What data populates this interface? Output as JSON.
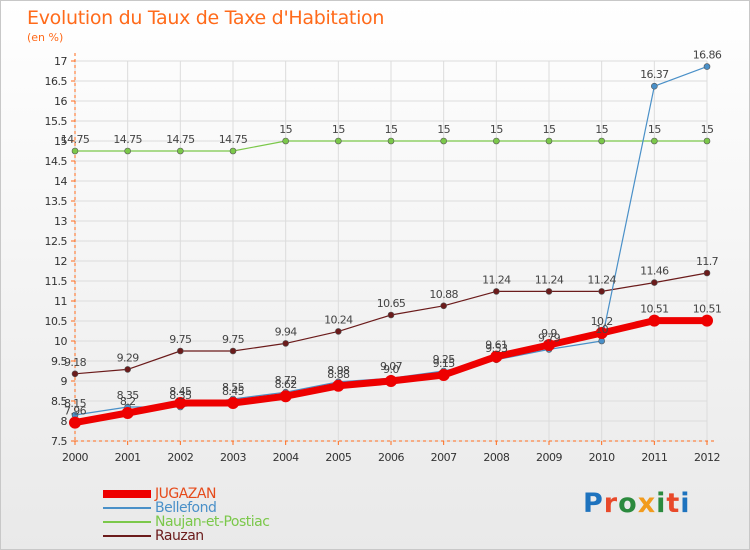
{
  "page": {
    "title": "Evolution du Taux de Taxe d'Habitation",
    "unit_label": "(en %)",
    "brand": "Proxiti",
    "brand_colors": [
      "#1e73be",
      "#e8492a",
      "#2b8a3e",
      "#f29b1d",
      "#2b8a3e",
      "#e8492a",
      "#1e73be"
    ]
  },
  "chart_data": {
    "type": "line",
    "title": "Evolution du Taux de Taxe d'Habitation",
    "ylabel": "(en %)",
    "xlabel": "",
    "categories": [
      "2000",
      "2001",
      "2002",
      "2003",
      "2004",
      "2005",
      "2006",
      "2007",
      "2008",
      "2009",
      "2010",
      "2011",
      "2012"
    ],
    "ylim": [
      7.5,
      17
    ],
    "yticks": [
      "7.5",
      "8",
      "8.5",
      "9",
      "9.5",
      "10",
      "10.5",
      "11",
      "11.5",
      "12",
      "12.5",
      "13",
      "13.5",
      "14",
      "14.5",
      "15",
      "15.5",
      "16",
      "16.5",
      "17"
    ],
    "grid": true,
    "legend_position": "bottom-left",
    "series": [
      {
        "name": "JUGAZAN",
        "color": "#ee0000",
        "values": [
          7.96,
          8.2,
          8.45,
          8.45,
          8.62,
          8.88,
          9.0,
          9.15,
          9.61,
          9.9,
          10.2,
          10.51,
          10.51
        ],
        "labels": [
          "7.96",
          "8.2",
          "8.45",
          "8.45",
          "8.62",
          "8.88",
          "9.0",
          "9.15",
          "9.61",
          "9.9",
          "10.2",
          "10.51",
          "10.51"
        ]
      },
      {
        "name": "Bellefond",
        "color": "#4a90c8",
        "values": [
          8.15,
          8.35,
          8.35,
          8.55,
          8.72,
          8.98,
          9.07,
          9.25,
          9.53,
          9.79,
          10.0,
          16.37,
          16.86
        ],
        "labels": [
          "8.15",
          "8.35",
          "8.35",
          "8.55",
          "8.72",
          "8.98",
          "9.07",
          "9.25",
          "9.53",
          "9.79",
          "10",
          "16.37",
          "16.86"
        ]
      },
      {
        "name": "Naujan-et-Postiac",
        "color": "#7bc84a",
        "values": [
          14.75,
          14.75,
          14.75,
          14.75,
          15,
          15,
          15,
          15,
          15,
          15,
          15,
          15,
          15
        ],
        "labels": [
          "14.75",
          "14.75",
          "14.75",
          "14.75",
          "15",
          "15",
          "15",
          "15",
          "15",
          "15",
          "15",
          "15",
          "15"
        ]
      },
      {
        "name": "Rauzan",
        "color": "#6b1b1b",
        "values": [
          9.18,
          9.29,
          9.75,
          9.75,
          9.94,
          10.24,
          10.65,
          10.88,
          11.24,
          11.24,
          11.24,
          11.46,
          11.7
        ],
        "labels": [
          "9.18",
          "9.29",
          "9.75",
          "9.75",
          "9.94",
          "10.24",
          "10.65",
          "10.88",
          "11.24",
          "11.24",
          "11.24",
          "11.46",
          "11.7"
        ]
      }
    ]
  }
}
